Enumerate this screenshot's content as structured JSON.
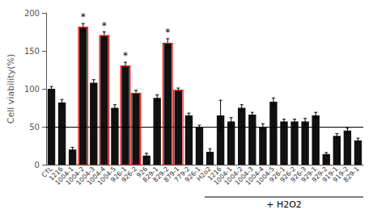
{
  "chart_data": {
    "type": "bar",
    "ylabel": "Cell viability(%)",
    "categories": [
      "CTL",
      "1216",
      "1004-1",
      "1004-2",
      "1004-3",
      "1004-4",
      "1004-5",
      "926-1",
      "926-2",
      "926",
      "829-1",
      "829-2",
      "879-1",
      "779-2",
      "926-1",
      "H2o2",
      "1216",
      "1004-1",
      "1004-2",
      "1004-3",
      "1004-4",
      "1004-5",
      "926-1",
      "926-2",
      "926-3",
      "929-1",
      "929-2",
      "919-1",
      "919-2",
      "829-1"
    ],
    "values": [
      100,
      82,
      20,
      181,
      108,
      170,
      75,
      130,
      94,
      12,
      88,
      160,
      98,
      65,
      50,
      17,
      65,
      57,
      75,
      66,
      50,
      83,
      57,
      57,
      57,
      65,
      14,
      38,
      45,
      32
    ],
    "errors": [
      3,
      4,
      3,
      5,
      4,
      5,
      4,
      5,
      4,
      3,
      4,
      6,
      3,
      3,
      2,
      4,
      20,
      5,
      4,
      3,
      4,
      5,
      3,
      3,
      4,
      4,
      2,
      3,
      3,
      3
    ],
    "color": "#111111",
    "reference_line": 50,
    "highlight_indices": [
      3,
      5,
      7,
      8,
      11,
      12
    ],
    "highlight_color": "red",
    "annotations": [
      {
        "text": "*",
        "category_index": 3
      },
      {
        "text": "*",
        "category_index": 5
      },
      {
        "text": "*",
        "category_index": 7
      },
      {
        "text": "*",
        "category_index": 11
      }
    ],
    "bracket": {
      "text": "+ H2O2",
      "start_index": 15
    },
    "ylim": [
      0,
      200
    ],
    "yticks": [
      0,
      50,
      100,
      150,
      200
    ],
    "grid": false
  }
}
